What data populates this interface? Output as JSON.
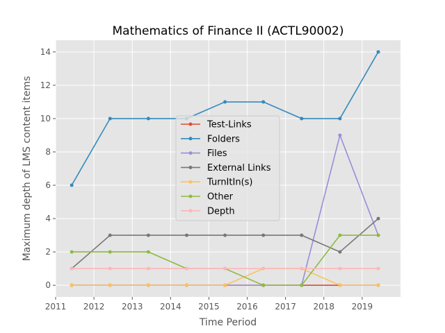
{
  "chart_data": {
    "type": "line",
    "title": "Mathematics of Finance II (ACTL90002)",
    "xlabel": "Time Period",
    "ylabel": "Maximum depth of LMS content items",
    "xlim": [
      2011.0,
      2020.0
    ],
    "ylim": [
      -0.7,
      14.7
    ],
    "xticks": [
      2011,
      2012,
      2013,
      2014,
      2015,
      2016,
      2017,
      2018,
      2019
    ],
    "yticks": [
      0,
      2,
      4,
      6,
      8,
      10,
      12,
      14
    ],
    "grid": true,
    "legend_position": "center",
    "x": [
      2011.42,
      2012.42,
      2013.42,
      2014.42,
      2015.42,
      2016.42,
      2017.42,
      2018.42,
      2019.42
    ],
    "series": [
      {
        "name": "Test-Links",
        "color": "#e24a33",
        "values": [
          0,
          0,
          0,
          0,
          0,
          0,
          0,
          0,
          0
        ]
      },
      {
        "name": "Folders",
        "color": "#348abd",
        "values": [
          6,
          10,
          10,
          10,
          11,
          11,
          10,
          10,
          14
        ]
      },
      {
        "name": "Files",
        "color": "#988ed5",
        "values": [
          0,
          0,
          0,
          0,
          0,
          0,
          0,
          9,
          3
        ]
      },
      {
        "name": "External Links",
        "color": "#777777",
        "values": [
          1,
          3,
          3,
          3,
          3,
          3,
          3,
          2,
          4
        ]
      },
      {
        "name": "TurnItIn(s)",
        "color": "#fbc15e",
        "values": [
          0,
          0,
          0,
          0,
          0,
          1,
          1,
          0,
          0
        ]
      },
      {
        "name": "Other",
        "color": "#8eba42",
        "values": [
          2,
          2,
          2,
          1,
          1,
          0,
          0,
          3,
          3
        ]
      },
      {
        "name": "Depth",
        "color": "#ffb5b8",
        "values": [
          1,
          1,
          1,
          1,
          1,
          1,
          1,
          1,
          1
        ]
      }
    ]
  }
}
